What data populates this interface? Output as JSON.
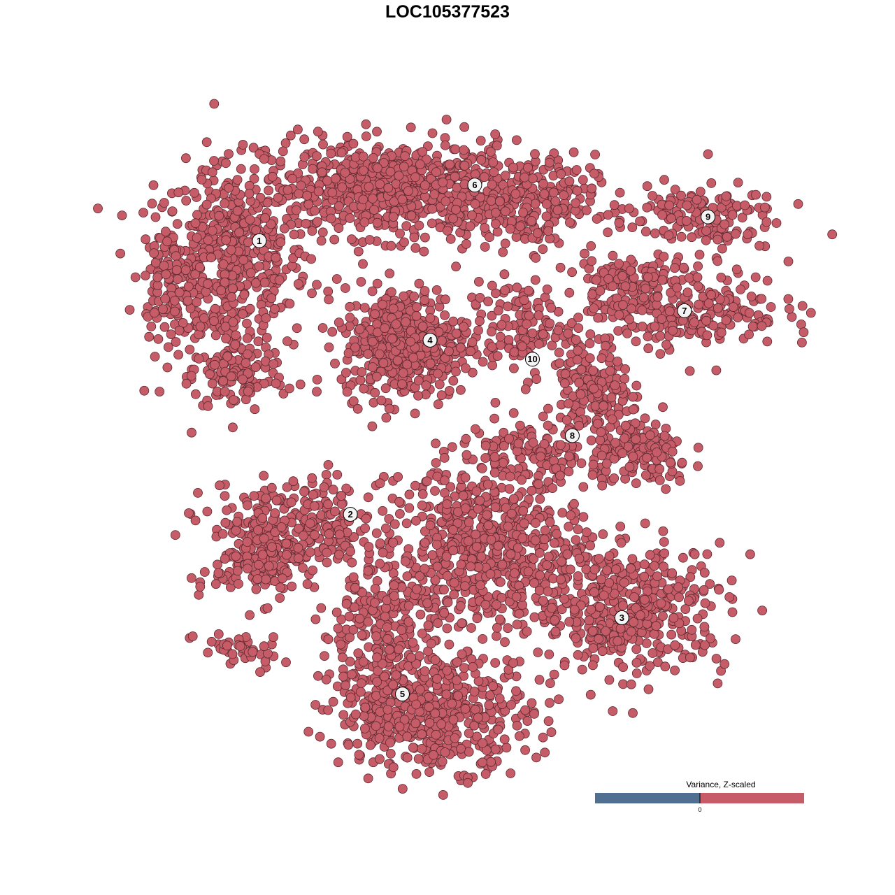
{
  "chart_data": {
    "type": "scatter",
    "title": "LOC105377523",
    "xlabel": "",
    "ylabel": "",
    "grid": false,
    "xlim": [
      -40,
      40
    ],
    "ylim": [
      -40,
      40
    ],
    "point_color": "#c55c67",
    "point_edge_color": "#5b2a31",
    "cluster_labels": [
      {
        "label": "1",
        "x": -25.3,
        "y": 26.0
      },
      {
        "label": "2",
        "x": -14.1,
        "y": -8.4
      },
      {
        "label": "3",
        "x": 19.3,
        "y": -21.4
      },
      {
        "label": "4",
        "x": -4.3,
        "y": 13.5
      },
      {
        "label": "5",
        "x": -7.7,
        "y": -31.0
      },
      {
        "label": "6",
        "x": 1.2,
        "y": 33.0
      },
      {
        "label": "7",
        "x": 27.0,
        "y": 17.2
      },
      {
        "label": "8",
        "x": 13.2,
        "y": 1.5
      },
      {
        "label": "9",
        "x": 29.9,
        "y": 29.0
      },
      {
        "label": "10",
        "x": 8.3,
        "y": 11.1
      }
    ],
    "clusters": [
      {
        "id": "1",
        "x": -28.8,
        "y": 22.9,
        "sdx": 4.7,
        "sdy": 6.2,
        "n": 500
      },
      {
        "id": "1",
        "x": -36.6,
        "y": 21.1,
        "sdx": 1.7,
        "sdy": 3.5,
        "n": 80
      },
      {
        "id": "1",
        "x": -28.0,
        "y": 8.8,
        "sdx": 3.0,
        "sdy": 2.2,
        "n": 100
      },
      {
        "id": "6",
        "x": -9.0,
        "y": 32.5,
        "sdx": 7.8,
        "sdy": 3.0,
        "n": 700
      },
      {
        "id": "6",
        "x": 8.2,
        "y": 30.8,
        "sdx": 3.9,
        "sdy": 3.0,
        "n": 200
      },
      {
        "id": "4",
        "x": -7.3,
        "y": 13.2,
        "sdx": 3.9,
        "sdy": 3.5,
        "n": 450
      },
      {
        "id": "10",
        "x": 6.9,
        "y": 14.9,
        "sdx": 3.4,
        "sdy": 3.0,
        "n": 130
      },
      {
        "id": "9",
        "x": 28.0,
        "y": 29.0,
        "sdx": 5.2,
        "sdy": 2.2,
        "n": 150
      },
      {
        "id": "7",
        "x": 27.1,
        "y": 17.6,
        "sdx": 6.0,
        "sdy": 2.6,
        "n": 250
      },
      {
        "id": "7",
        "x": 19.4,
        "y": 21.1,
        "sdx": 2.6,
        "sdy": 1.7,
        "n": 80
      },
      {
        "id": "8",
        "x": 15.9,
        "y": 7.0,
        "sdx": 2.2,
        "sdy": 3.5,
        "n": 150
      },
      {
        "id": "8",
        "x": 21.9,
        "y": -0.9,
        "sdx": 3.0,
        "sdy": 2.2,
        "n": 150
      },
      {
        "id": "8",
        "x": 8.2,
        "y": 0.0,
        "sdx": 4.3,
        "sdy": 1.7,
        "n": 100
      },
      {
        "id": "2",
        "x": -21.1,
        "y": -10.5,
        "sdx": 5.2,
        "sdy": 3.0,
        "n": 300
      },
      {
        "id": "2",
        "x": -25.4,
        "y": -14.9,
        "sdx": 2.6,
        "sdy": 2.2,
        "n": 100
      },
      {
        "id": "2",
        "x": -28.0,
        "y": -25.5,
        "sdx": 2.6,
        "sdy": 1.3,
        "n": 40
      },
      {
        "id": "5",
        "x": -3.9,
        "y": -33.4,
        "sdx": 6.0,
        "sdy": 3.5,
        "n": 500
      },
      {
        "id": "5",
        "x": -10.8,
        "y": -22.9,
        "sdx": 3.5,
        "sdy": 5.2,
        "n": 250
      },
      {
        "id": "3",
        "x": 20.2,
        "y": -20.2,
        "sdx": 6.0,
        "sdy": 3.9,
        "n": 450
      },
      {
        "id": "3",
        "x": 3.0,
        "y": -12.3,
        "sdx": 6.0,
        "sdy": 5.2,
        "n": 600
      }
    ],
    "legend": {
      "title": "Variance, Z-scaled",
      "tick_label": "0",
      "low_color": "#516f91",
      "high_color": "#c55c67",
      "placement": "bottom-right"
    }
  }
}
